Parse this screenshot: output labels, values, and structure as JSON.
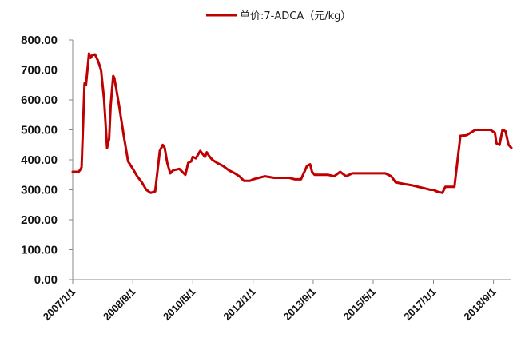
{
  "chart_data": {
    "type": "line",
    "title": "",
    "xlabel": "",
    "ylabel": "",
    "ylim": [
      0,
      800
    ],
    "y_ticks": [
      "0.00",
      "100.00",
      "200.00",
      "300.00",
      "400.00",
      "500.00",
      "600.00",
      "700.00",
      "800.00"
    ],
    "x_tick_labels": [
      "2007/1/1",
      "2008/9/1",
      "2010/5/1",
      "2012/1/1",
      "2013/9/1",
      "2015/5/1",
      "2017/1/1",
      "2018/9/1"
    ],
    "x_range": [
      "2007/1/1",
      "2019/3/1"
    ],
    "grid": false,
    "legend_position": "top",
    "colors": {
      "series": "#c00000",
      "axis": "#888888"
    },
    "series": [
      {
        "name": "单价:7-ADCA（元/kg）",
        "x": [
          "2007/1/1",
          "2007/3/1",
          "2007/3/15",
          "2007/4/1",
          "2007/5/1",
          "2007/5/15",
          "2007/6/15",
          "2007/7/1",
          "2007/7/20",
          "2007/8/15",
          "2007/9/15",
          "2007/10/15",
          "2007/11/15",
          "2007/12/15",
          "2008/1/5",
          "2008/1/20",
          "2008/2/15",
          "2008/2/25",
          "2008/3/15",
          "2008/4/15",
          "2008/6/1",
          "2008/7/15",
          "2008/9/1",
          "2008/10/15",
          "2008/12/1",
          "2009/1/15",
          "2009/3/1",
          "2009/4/15",
          "2009/6/1",
          "2009/7/1",
          "2009/7/20",
          "2009/8/15",
          "2009/9/15",
          "2009/10/15",
          "2009/12/15",
          "2010/2/15",
          "2010/3/15",
          "2010/4/15",
          "2010/5/1",
          "2010/6/1",
          "2010/7/15",
          "2010/9/1",
          "2010/9/20",
          "2010/10/15",
          "2010/11/15",
          "2011/1/1",
          "2011/3/1",
          "2011/5/1",
          "2011/7/1",
          "2011/8/15",
          "2011/10/1",
          "2011/12/1",
          "2012/1/1",
          "2012/3/1",
          "2012/5/1",
          "2012/8/1",
          "2012/11/1",
          "2013/1/1",
          "2013/3/1",
          "2013/5/1",
          "2013/7/1",
          "2013/8/1",
          "2013/8/20",
          "2013/9/15",
          "2013/11/1",
          "2014/2/1",
          "2014/4/1",
          "2014/6/1",
          "2014/8/1",
          "2014/10/1",
          "2014/12/1",
          "2015/2/1",
          "2015/6/1",
          "2015/9/1",
          "2015/11/1",
          "2015/12/15",
          "2016/3/1",
          "2016/6/1",
          "2016/8/1",
          "2016/10/1",
          "2016/12/1",
          "2017/1/1",
          "2017/2/1",
          "2017/4/1",
          "2017/5/1",
          "2017/6/1",
          "2017/8/1",
          "2017/10/1",
          "2017/12/1",
          "2018/3/1",
          "2018/6/1",
          "2018/8/1",
          "2018/9/15",
          "2018/10/1",
          "2018/11/1",
          "2018/12/1",
          "2019/1/1",
          "2019/2/1",
          "2019/3/1"
        ],
        "values": [
          360,
          360,
          365,
          375,
          655,
          650,
          755,
          740,
          750,
          752,
          730,
          700,
          600,
          440,
          470,
          580,
          680,
          675,
          640,
          580,
          480,
          395,
          370,
          345,
          325,
          300,
          290,
          295,
          430,
          450,
          440,
          390,
          355,
          365,
          370,
          350,
          390,
          395,
          410,
          405,
          430,
          410,
          425,
          412,
          400,
          390,
          380,
          365,
          355,
          345,
          330,
          330,
          335,
          340,
          345,
          340,
          340,
          340,
          335,
          335,
          380,
          385,
          360,
          350,
          350,
          350,
          345,
          360,
          345,
          355,
          355,
          355,
          355,
          355,
          345,
          325,
          320,
          315,
          310,
          305,
          300,
          300,
          295,
          290,
          310,
          310,
          310,
          480,
          482,
          500,
          500,
          500,
          490,
          455,
          450,
          500,
          495,
          450,
          440
        ]
      }
    ]
  }
}
